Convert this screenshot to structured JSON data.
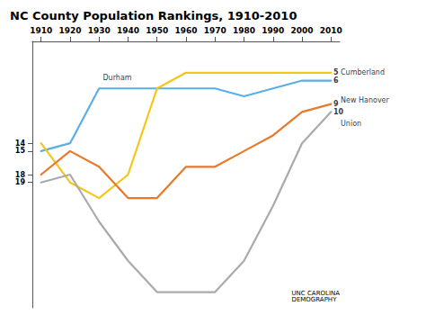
{
  "chart_data": {
    "type": "line",
    "title": "NC County Population Rankings, 1910-2010",
    "x": [
      1910,
      1920,
      1930,
      1940,
      1950,
      1960,
      1970,
      1980,
      1990,
      2000,
      2010
    ],
    "series": [
      {
        "name": "Durham",
        "color": "#5BAEE8",
        "values": [
          15,
          14,
          7,
          7,
          7,
          7,
          7,
          8,
          7,
          6,
          6
        ]
      },
      {
        "name": "Cumberland",
        "color": "#F5C518",
        "values": [
          14,
          19,
          21,
          18,
          7,
          5,
          5,
          5,
          5,
          5,
          5
        ]
      },
      {
        "name": "New Hanover",
        "color": "#E8792A",
        "values": [
          18,
          15,
          17,
          21,
          21,
          17,
          17,
          15,
          13,
          10,
          9
        ]
      },
      {
        "name": "Union",
        "color": "#AAAAAA",
        "values": [
          19,
          18,
          24,
          29,
          33,
          33,
          33,
          29,
          22,
          14,
          10
        ]
      }
    ],
    "xlim": [
      1907,
      2013
    ],
    "xticks": [
      1910,
      1920,
      1930,
      1940,
      1950,
      1960,
      1970,
      1980,
      1990,
      2000,
      2010
    ],
    "ylim": [
      35,
      1
    ],
    "yticks": [
      14,
      15,
      18,
      19
    ],
    "grid": false,
    "annotations": [
      {
        "text": "Durham",
        "x": 1931,
        "y": 5.6
      },
      {
        "text": "Cumberland",
        "x": 2013,
        "y": 5
      },
      {
        "text": "New Hanover",
        "x": 2013,
        "y": 8.5
      },
      {
        "text": "Union",
        "x": 2013,
        "y": 11.5
      },
      {
        "text": "5",
        "x": 2010.5,
        "y": 5
      },
      {
        "text": "6",
        "x": 2010.5,
        "y": 6
      },
      {
        "text": "9",
        "x": 2010.5,
        "y": 9
      },
      {
        "text": "10",
        "x": 2010.5,
        "y": 10
      },
      {
        "text": "UNC CAROLINA\nDEMOGRAPHY"
      }
    ]
  }
}
